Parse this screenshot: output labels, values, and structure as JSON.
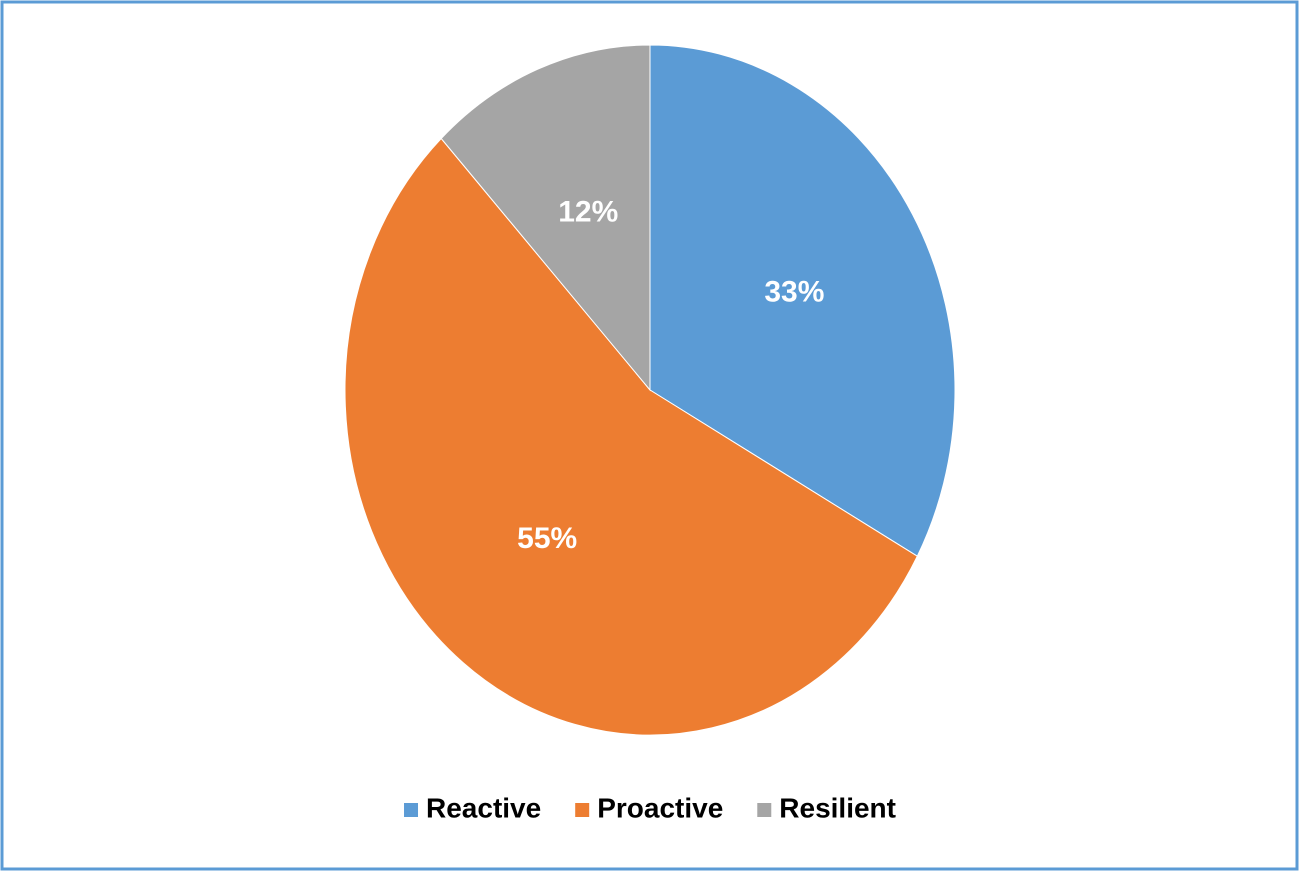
{
  "chart_data": {
    "type": "pie",
    "categories": [
      "Reactive",
      "Proactive",
      "Resilient"
    ],
    "values": [
      33,
      55,
      12
    ],
    "value_labels": [
      "33%",
      "55%",
      "12%"
    ],
    "colors": [
      "#5b9bd5",
      "#ed7d31",
      "#a5a5a5"
    ],
    "legend": "bottom"
  }
}
